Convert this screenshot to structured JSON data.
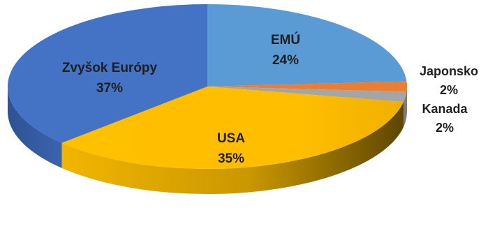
{
  "chart_data": {
    "type": "pie",
    "style": "3d",
    "title": "",
    "slices": [
      {
        "name": "EMÚ",
        "value": 24,
        "label": "24%",
        "color": "#5B9BD5",
        "dark": "#3E7CB8"
      },
      {
        "name": "Japonsko",
        "value": 2,
        "label": "2%",
        "color": "#ED7D31",
        "dark": "#B85A1E"
      },
      {
        "name": "Kanada",
        "value": 2,
        "label": "2%",
        "color": "#A5A5A5",
        "dark": "#7C7C7C"
      },
      {
        "name": "USA",
        "value": 35,
        "label": "35%",
        "color": "#FFC000",
        "dark": "#7A5C00"
      },
      {
        "name": "Zvyšok Európy",
        "value": 37,
        "label": "37%",
        "color": "#4472C4",
        "dark": "#2F5597"
      }
    ]
  }
}
